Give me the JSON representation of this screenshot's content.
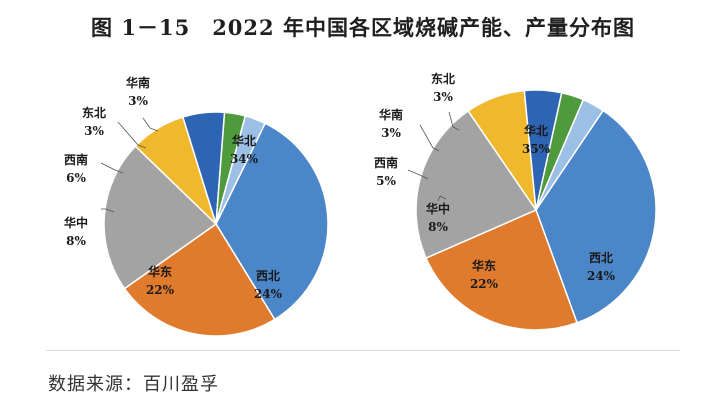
{
  "title": {
    "figure_no": "图 1－15",
    "text": "2022 年中国各区域烧碱产能、产量分布图"
  },
  "source": "数据来源：百川盈孚",
  "colors": {
    "华北": "#4a86c8",
    "西北": "#e07a2c",
    "华东": "#a3a3a3",
    "华中": "#f0b82c",
    "西南": "#2d64b3",
    "东北": "#4f9a3c",
    "华南": "#9cbfe6"
  },
  "chart_data": [
    {
      "type": "pie",
      "name": "产能",
      "categories": [
        "华北",
        "西北",
        "华东",
        "华中",
        "西南",
        "东北",
        "华南"
      ],
      "values": [
        34,
        24,
        22,
        8,
        6,
        3,
        3
      ],
      "labels": [
        {
          "name": "华北",
          "pct": "34%"
        },
        {
          "name": "西北",
          "pct": "24%"
        },
        {
          "name": "华东",
          "pct": "22%"
        },
        {
          "name": "华中",
          "pct": "8%"
        },
        {
          "name": "西南",
          "pct": "6%"
        },
        {
          "name": "东北",
          "pct": "3%"
        },
        {
          "name": "华南",
          "pct": "3%"
        }
      ]
    },
    {
      "type": "pie",
      "name": "产量",
      "categories": [
        "华北",
        "西北",
        "华东",
        "华中",
        "西南",
        "东北",
        "华南"
      ],
      "values": [
        35,
        24,
        22,
        8,
        5,
        3,
        3
      ],
      "labels": [
        {
          "name": "华北",
          "pct": "35%"
        },
        {
          "name": "西北",
          "pct": "24%"
        },
        {
          "name": "华东",
          "pct": "22%"
        },
        {
          "name": "华中",
          "pct": "8%"
        },
        {
          "name": "西南",
          "pct": "5%"
        },
        {
          "name": "华南",
          "pct": "3%"
        },
        {
          "name": "东北",
          "pct": "3%"
        }
      ]
    }
  ]
}
